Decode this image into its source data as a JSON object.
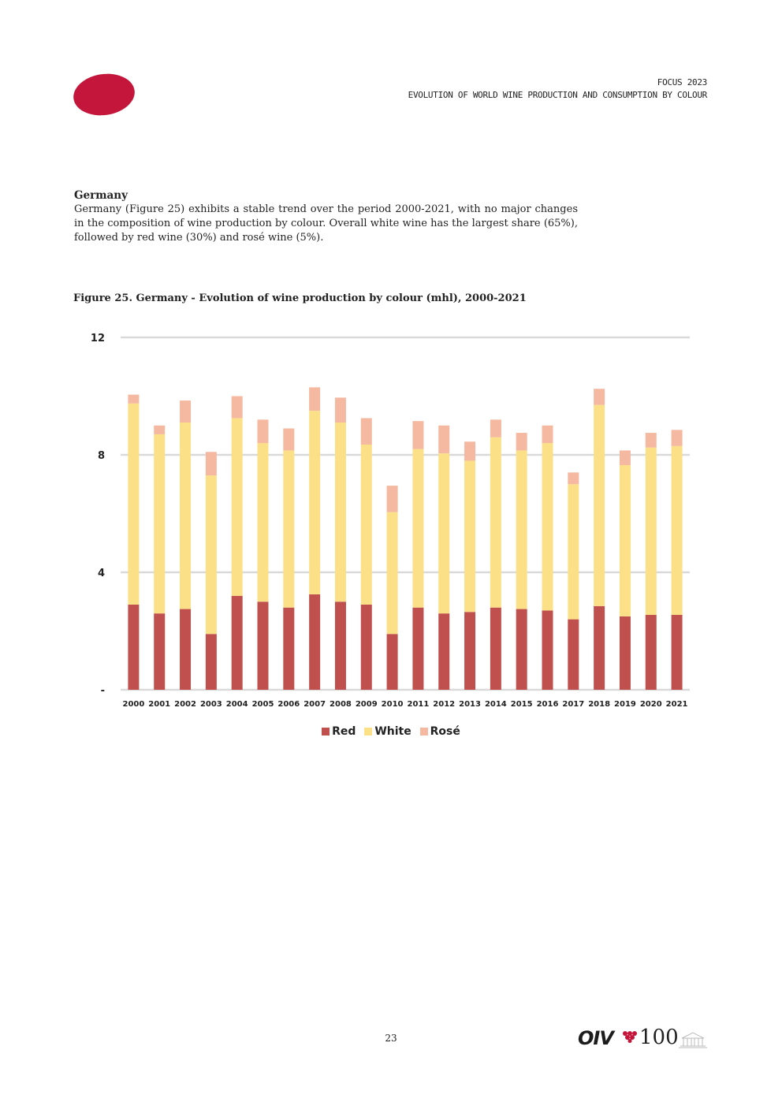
{
  "header": {
    "line1": "FOCUS 2023",
    "line2": "EVOLUTION OF WORLD WINE PRODUCTION AND CONSUMPTION BY COLOUR"
  },
  "section": {
    "heading": "Germany",
    "body": "Germany (Figure 25) exhibits a stable trend over the period 2000-2021, with no major changes in the composition of wine production by colour. Overall white wine has the largest share (65%), followed by red wine (30%) and rosé wine (5%)."
  },
  "figure_title": "Figure 25. Germany - Evolution of wine production by colour (mhl), 2000-2021",
  "colors": {
    "red": "#c0504d",
    "white": "#fce088",
    "rose": "#f4b9a0",
    "logo": "#c4153a",
    "grid": "#d9d9d9"
  },
  "chart_data": {
    "type": "bar",
    "stacked": true,
    "title": "Figure 25. Germany - Evolution of wine production by colour (mhl), 2000-2021",
    "xlabel": "",
    "ylabel": "",
    "ylim": [
      0,
      12
    ],
    "yticks": [
      0,
      4,
      8,
      12
    ],
    "ytick_labels": [
      "-",
      "4",
      "8",
      "12"
    ],
    "grid": true,
    "legend_position": "bottom",
    "categories": [
      "2000",
      "2001",
      "2002",
      "2003",
      "2004",
      "2005",
      "2006",
      "2007",
      "2008",
      "2009",
      "2010",
      "2011",
      "2012",
      "2013",
      "2014",
      "2015",
      "2016",
      "2017",
      "2018",
      "2019",
      "2020",
      "2021"
    ],
    "series": [
      {
        "name": "Red",
        "color": "#c0504d",
        "values": [
          2.9,
          2.6,
          2.75,
          1.9,
          3.2,
          3.0,
          2.8,
          3.25,
          3.0,
          2.9,
          1.9,
          2.8,
          2.6,
          2.65,
          2.8,
          2.75,
          2.7,
          2.4,
          2.85,
          2.5,
          2.55,
          2.55
        ]
      },
      {
        "name": "White",
        "color": "#fce088",
        "values": [
          6.85,
          6.1,
          6.35,
          5.4,
          6.05,
          5.4,
          5.35,
          6.25,
          6.1,
          5.45,
          4.15,
          5.4,
          5.45,
          5.15,
          5.8,
          5.4,
          5.7,
          4.6,
          6.85,
          5.15,
          5.7,
          5.75
        ]
      },
      {
        "name": "Rosé",
        "color": "#f4b9a0",
        "values": [
          0.3,
          0.3,
          0.75,
          0.8,
          0.75,
          0.8,
          0.75,
          0.8,
          0.85,
          0.9,
          0.9,
          0.95,
          0.95,
          0.65,
          0.6,
          0.6,
          0.6,
          0.4,
          0.55,
          0.5,
          0.5,
          0.55
        ]
      }
    ]
  },
  "legend": {
    "red": "Red",
    "white": "White",
    "rose": "Rosé"
  },
  "footer": {
    "page_number": "23",
    "logo_text": "OIV",
    "logo_number": "100"
  }
}
